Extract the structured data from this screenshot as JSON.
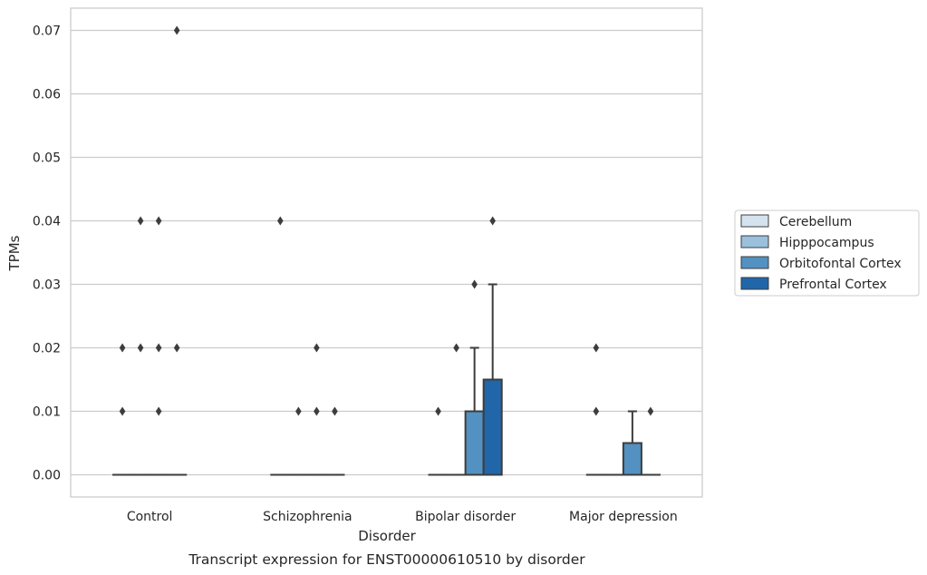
{
  "chart_data": {
    "type": "box",
    "title": "",
    "caption": "Transcript expression for ENST00000610510 by disorder",
    "xlabel": "Disorder",
    "ylabel": "TPMs",
    "ylim": [
      -0.0035,
      0.0735
    ],
    "yticks": [
      0.0,
      0.01,
      0.02,
      0.03,
      0.04,
      0.05,
      0.06,
      0.07
    ],
    "ytick_labels": [
      "0.00",
      "0.01",
      "0.02",
      "0.03",
      "0.04",
      "0.05",
      "0.06",
      "0.07"
    ],
    "grid": "horizontal",
    "legend_position": "right",
    "categories": [
      "Control",
      "Schizophrenia",
      "Bipolar disorder",
      "Major depression"
    ],
    "series": [
      {
        "name": "Cerebellum",
        "color": "#d5e3f0",
        "boxes": [
          {
            "q1": 0,
            "median": 0,
            "q3": 0,
            "whisker_low": 0,
            "whisker_high": 0,
            "outliers": [
              0.01,
              0.02
            ]
          },
          {
            "q1": 0,
            "median": 0,
            "q3": 0,
            "whisker_low": 0,
            "whisker_high": 0,
            "outliers": [
              0.04
            ]
          },
          {
            "q1": 0,
            "median": 0,
            "q3": 0,
            "whisker_low": 0,
            "whisker_high": 0,
            "outliers": [
              0.01
            ]
          },
          {
            "q1": 0,
            "median": 0,
            "q3": 0,
            "whisker_low": 0,
            "whisker_high": 0,
            "outliers": [
              0.01,
              0.02
            ]
          }
        ]
      },
      {
        "name": "Hipppocampus",
        "color": "#9ac0dc",
        "boxes": [
          {
            "q1": 0,
            "median": 0,
            "q3": 0,
            "whisker_low": 0,
            "whisker_high": 0,
            "outliers": [
              0.02,
              0.04
            ]
          },
          {
            "q1": 0,
            "median": 0,
            "q3": 0,
            "whisker_low": 0,
            "whisker_high": 0,
            "outliers": [
              0.01
            ]
          },
          {
            "q1": 0,
            "median": 0,
            "q3": 0,
            "whisker_low": 0,
            "whisker_high": 0,
            "outliers": [
              0.02
            ]
          },
          {
            "q1": 0,
            "median": 0,
            "q3": 0,
            "whisker_low": 0,
            "whisker_high": 0,
            "outliers": []
          }
        ]
      },
      {
        "name": "Orbitofontal Cortex",
        "color": "#5291c1",
        "boxes": [
          {
            "q1": 0,
            "median": 0,
            "q3": 0,
            "whisker_low": 0,
            "whisker_high": 0,
            "outliers": [
              0.01,
              0.02,
              0.04
            ]
          },
          {
            "q1": 0,
            "median": 0,
            "q3": 0,
            "whisker_low": 0,
            "whisker_high": 0,
            "outliers": [
              0.01,
              0.02
            ]
          },
          {
            "q1": 0,
            "median": 0,
            "q3": 0.01,
            "whisker_low": 0,
            "whisker_high": 0.02,
            "outliers": [
              0.03
            ]
          },
          {
            "q1": 0,
            "median": 0,
            "q3": 0.005,
            "whisker_low": 0,
            "whisker_high": 0.01,
            "outliers": []
          }
        ]
      },
      {
        "name": "Prefrontal Cortex",
        "color": "#2166a8",
        "boxes": [
          {
            "q1": 0,
            "median": 0,
            "q3": 0,
            "whisker_low": 0,
            "whisker_high": 0,
            "outliers": [
              0.02,
              0.07
            ]
          },
          {
            "q1": 0,
            "median": 0,
            "q3": 0,
            "whisker_low": 0,
            "whisker_high": 0,
            "outliers": [
              0.01
            ]
          },
          {
            "q1": 0,
            "median": 0,
            "q3": 0.015,
            "whisker_low": 0,
            "whisker_high": 0.03,
            "outliers": [
              0.04
            ]
          },
          {
            "q1": 0,
            "median": 0,
            "q3": 0,
            "whisker_low": 0,
            "whisker_high": 0,
            "outliers": [
              0.01
            ]
          }
        ]
      }
    ]
  }
}
